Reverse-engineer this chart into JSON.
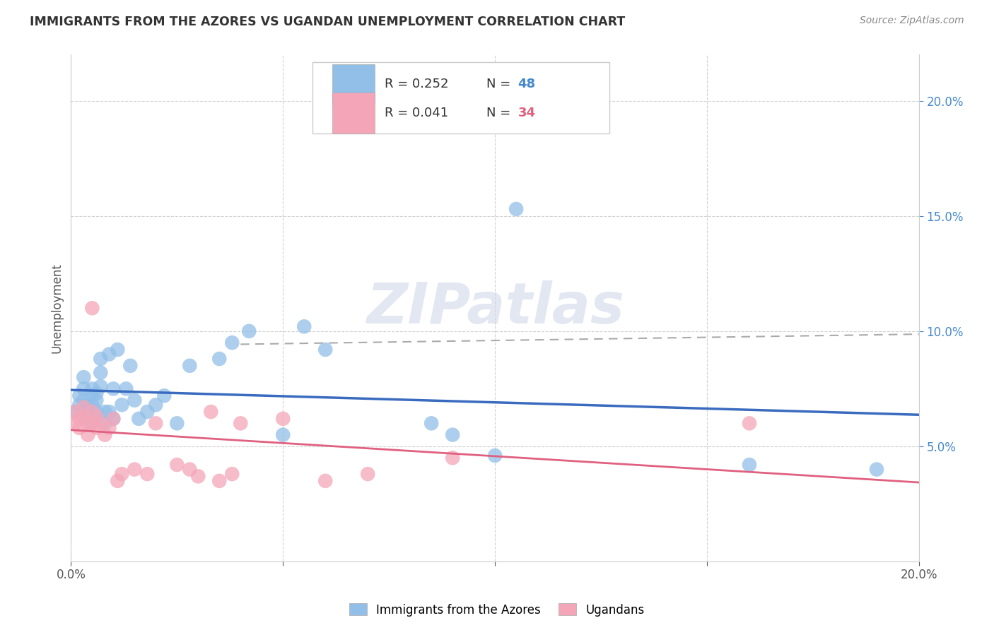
{
  "title": "IMMIGRANTS FROM THE AZORES VS UGANDAN UNEMPLOYMENT CORRELATION CHART",
  "source": "Source: ZipAtlas.com",
  "ylabel": "Unemployment",
  "xlim": [
    0,
    0.2
  ],
  "ylim": [
    0.0,
    0.22
  ],
  "yticks": [
    0.05,
    0.1,
    0.15,
    0.2
  ],
  "ytick_labels": [
    "5.0%",
    "10.0%",
    "15.0%",
    "20.0%"
  ],
  "xticks": [
    0.0,
    0.05,
    0.1,
    0.15,
    0.2
  ],
  "xtick_labels": [
    "0.0%",
    "",
    "",
    "",
    "20.0%"
  ],
  "legend1_r": "0.252",
  "legend1_n": "48",
  "legend2_r": "0.041",
  "legend2_n": "34",
  "blue_color": "#92bfe8",
  "pink_color": "#f4a6b8",
  "blue_line_color": "#3a6bbf",
  "pink_line_color": "#e06080",
  "dash_color": "#aaaaaa",
  "blue_scatter_x": [
    0.001,
    0.002,
    0.002,
    0.003,
    0.003,
    0.003,
    0.004,
    0.004,
    0.004,
    0.005,
    0.005,
    0.005,
    0.005,
    0.006,
    0.006,
    0.006,
    0.007,
    0.007,
    0.007,
    0.008,
    0.008,
    0.009,
    0.009,
    0.01,
    0.01,
    0.011,
    0.012,
    0.013,
    0.014,
    0.015,
    0.016,
    0.018,
    0.02,
    0.022,
    0.025,
    0.028,
    0.035,
    0.038,
    0.042,
    0.05,
    0.055,
    0.06,
    0.085,
    0.09,
    0.1,
    0.105,
    0.16,
    0.19
  ],
  "blue_scatter_y": [
    0.065,
    0.072,
    0.068,
    0.07,
    0.075,
    0.08,
    0.065,
    0.068,
    0.063,
    0.072,
    0.068,
    0.075,
    0.06,
    0.065,
    0.07,
    0.073,
    0.088,
    0.082,
    0.076,
    0.06,
    0.065,
    0.09,
    0.065,
    0.062,
    0.075,
    0.092,
    0.068,
    0.075,
    0.085,
    0.07,
    0.062,
    0.065,
    0.068,
    0.072,
    0.06,
    0.085,
    0.088,
    0.095,
    0.1,
    0.055,
    0.102,
    0.092,
    0.06,
    0.055,
    0.046,
    0.153,
    0.042,
    0.04
  ],
  "pink_scatter_x": [
    0.001,
    0.001,
    0.002,
    0.002,
    0.003,
    0.003,
    0.004,
    0.004,
    0.005,
    0.005,
    0.005,
    0.006,
    0.006,
    0.007,
    0.008,
    0.009,
    0.01,
    0.011,
    0.012,
    0.015,
    0.018,
    0.02,
    0.025,
    0.028,
    0.03,
    0.033,
    0.035,
    0.038,
    0.04,
    0.05,
    0.06,
    0.07,
    0.09,
    0.16
  ],
  "pink_scatter_y": [
    0.06,
    0.065,
    0.058,
    0.062,
    0.063,
    0.067,
    0.055,
    0.06,
    0.06,
    0.065,
    0.11,
    0.058,
    0.063,
    0.06,
    0.055,
    0.058,
    0.062,
    0.035,
    0.038,
    0.04,
    0.038,
    0.06,
    0.042,
    0.04,
    0.037,
    0.065,
    0.035,
    0.038,
    0.06,
    0.062,
    0.035,
    0.038,
    0.045,
    0.06
  ],
  "watermark": "ZIPatlas",
  "background_color": "#ffffff",
  "grid_color": "#cccccc",
  "bottom_legend1": "Immigrants from the Azores",
  "bottom_legend2": "Ugandans"
}
